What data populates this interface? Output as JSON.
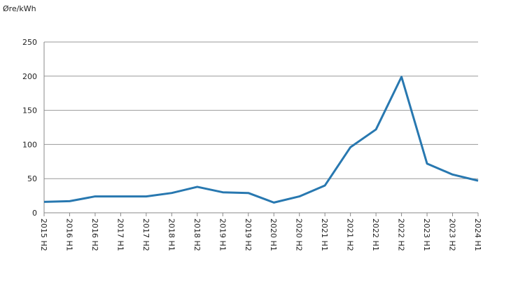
{
  "chart_data": {
    "type": "line",
    "y_label": "Øre/kWh",
    "categories": [
      "2015 H2",
      "2016 H1",
      "2016 H2",
      "2017 H1",
      "2017 H2",
      "2018 H1",
      "2018 H2",
      "2019 H1",
      "2019 H2",
      "2020 H1",
      "2020 H2",
      "2021 H1",
      "2021 H2",
      "2022 H1",
      "2022 H2",
      "2023 H1",
      "2023 H2",
      "2024 H1"
    ],
    "values": [
      16,
      17,
      24,
      24,
      24,
      29,
      38,
      30,
      29,
      15,
      24,
      40,
      96,
      122,
      199,
      72,
      56,
      47
    ],
    "color": "#2878b0",
    "ylim": [
      0,
      250
    ],
    "yticks": [
      0,
      50,
      100,
      150,
      200,
      250
    ],
    "grid": true
  }
}
